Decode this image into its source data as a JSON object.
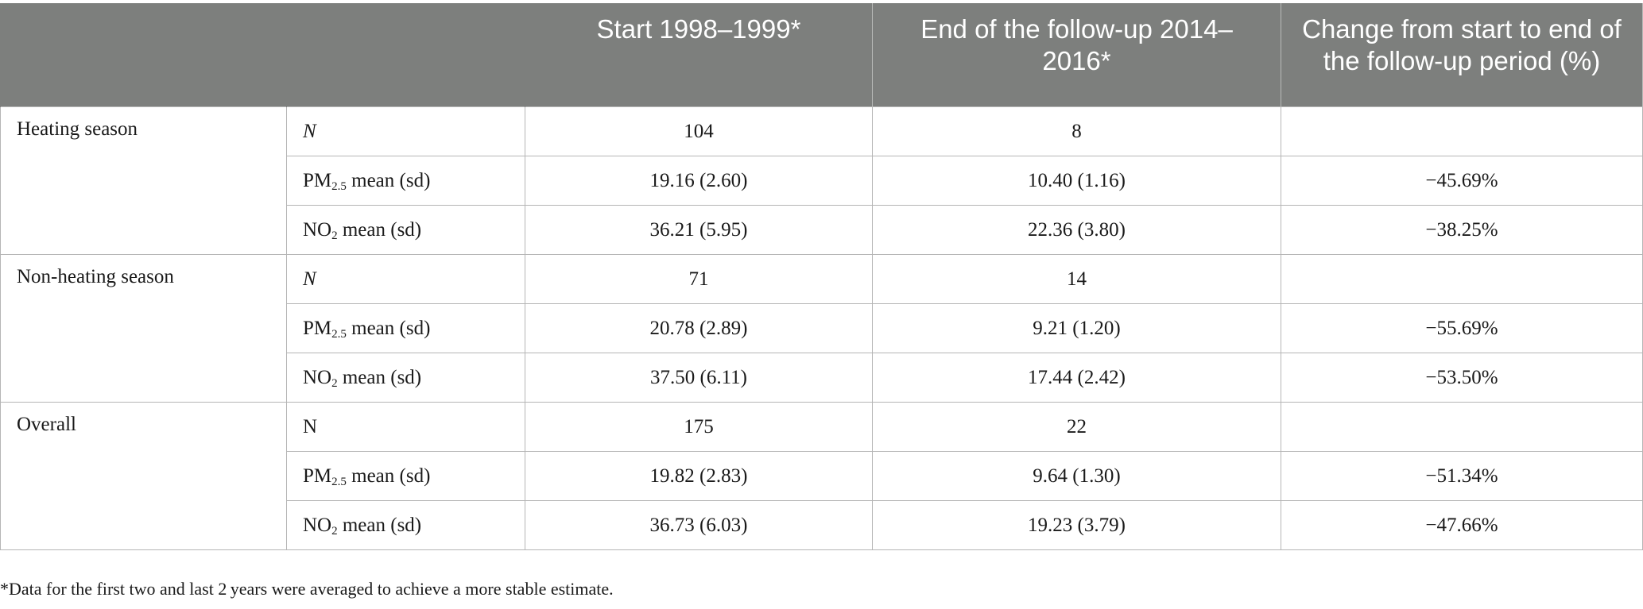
{
  "header": {
    "col1": "",
    "col2": "",
    "col3": "Start 1998–1999*",
    "col4": "End of the follow-up 2014–2016*",
    "col5": "Change from start to end of the follow-up period (%)"
  },
  "groups": [
    {
      "label": "Heating season",
      "rows": [
        {
          "measure_main": "N",
          "measure_sub": "",
          "measure_rest": "",
          "start": "104",
          "end": "8",
          "change": ""
        },
        {
          "measure_main": "PM",
          "measure_sub": "2.5",
          "measure_rest": " mean (sd)",
          "start": "19.16 (2.60)",
          "end": "10.40 (1.16)",
          "change": "−45.69%"
        },
        {
          "measure_main": "NO",
          "measure_sub": "2",
          "measure_rest": " mean (sd)",
          "start": "36.21 (5.95)",
          "end": "22.36 (3.80)",
          "change": "−38.25%"
        }
      ]
    },
    {
      "label": "Non-heating season",
      "rows": [
        {
          "measure_main": "N",
          "measure_sub": "",
          "measure_rest": "",
          "start": "71",
          "end": "14",
          "change": ""
        },
        {
          "measure_main": "PM",
          "measure_sub": "2.5",
          "measure_rest": " mean (sd)",
          "start": "20.78 (2.89)",
          "end": "9.21 (1.20)",
          "change": "−55.69%"
        },
        {
          "measure_main": "NO",
          "measure_sub": "2",
          "measure_rest": " mean (sd)",
          "start": "37.50 (6.11)",
          "end": "17.44 (2.42)",
          "change": "−53.50%"
        }
      ]
    },
    {
      "label": "Overall",
      "rows": [
        {
          "measure_main": "N",
          "measure_sub": "",
          "measure_rest": "",
          "start": "175",
          "end": "22",
          "change": ""
        },
        {
          "measure_main": "PM",
          "measure_sub": "2.5",
          "measure_rest": " mean (sd)",
          "start": "19.82 (2.83)",
          "end": "9.64 (1.30)",
          "change": "−51.34%"
        },
        {
          "measure_main": "NO",
          "measure_sub": "2",
          "measure_rest": " mean (sd)",
          "start": "36.73 (6.03)",
          "end": "19.23 (3.79)",
          "change": "−47.66%"
        }
      ]
    }
  ],
  "footnote": "*Data for the first two and last 2 years were averaged to achieve a more stable estimate."
}
